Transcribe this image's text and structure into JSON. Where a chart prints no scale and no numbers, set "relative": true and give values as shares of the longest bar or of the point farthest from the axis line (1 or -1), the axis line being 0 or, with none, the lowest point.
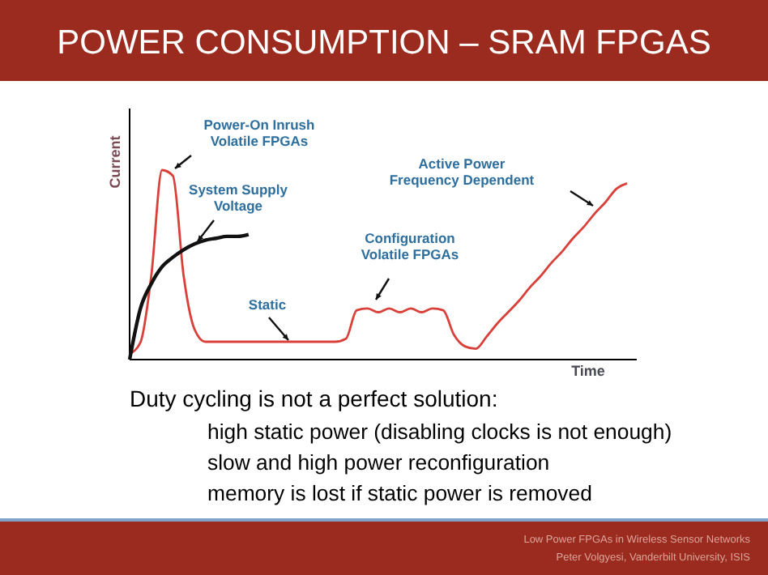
{
  "chart_data": {
    "type": "line",
    "title": "POWER CONSUMPTION – SRAM FPGAS",
    "xlabel": "Time",
    "ylabel": "Current",
    "relative": true,
    "marker": "none",
    "line_style": "solid",
    "categories": [
      null,
      null,
      null,
      null,
      null,
      null,
      null,
      null,
      null,
      null,
      null,
      null,
      null,
      null,
      null,
      null,
      null,
      null,
      null,
      null,
      null,
      null,
      null,
      null,
      null,
      null,
      null,
      null,
      null,
      null,
      null,
      null,
      null,
      null,
      null,
      null,
      null,
      null,
      null,
      null,
      null,
      null,
      null,
      null,
      null,
      null,
      null
    ],
    "series": [
      {
        "color": "#d9403a",
        "values": [
          0.03,
          0.09,
          0.44,
          1,
          0.97,
          0.44,
          0.16,
          0.094,
          0.094,
          0.094,
          0.094,
          0.094,
          0.094,
          0.094,
          0.094,
          0.094,
          0.094,
          0.094,
          0.094,
          0.094,
          0.11,
          0.26,
          0.27,
          0.25,
          0.27,
          0.25,
          0.27,
          0.25,
          0.27,
          0.26,
          0.13,
          0.07,
          0.057,
          0.12,
          0.19,
          0.25,
          0.31,
          0.38,
          0.44,
          0.51,
          0.57,
          0.64,
          0.7,
          0.77,
          0.83,
          0.9,
          0.93
        ]
      },
      {
        "color": "#111111",
        "values": [
          0,
          0.27,
          0.4,
          0.49,
          0.54,
          0.58,
          0.61,
          0.63,
          0.64,
          0.65,
          0.65,
          0.66,
          null,
          null,
          null,
          null,
          null,
          null,
          null,
          null,
          null,
          null,
          null,
          null,
          null,
          null,
          null,
          null,
          null,
          null,
          null,
          null,
          null,
          null,
          null,
          null,
          null,
          null,
          null,
          null,
          null,
          null,
          null,
          null,
          null,
          null,
          null
        ]
      }
    ],
    "annotations": [
      "Power-On Inrush\nVolatile FPGAs",
      "System Supply\nVoltage",
      "Static",
      "Configuration\nVolatile FPGAs",
      "Active Power\nFrequency Dependent",
      "Duty cycling is not a perfect solution:",
      "high static power (disabling clocks is not enough)",
      "slow and high power reconfiguration",
      "memory is lost if static power is removed",
      "Low Power FPGAs in Wireless Sensor Networks",
      "Peter Volgyesi, Vanderbilt University, ISIS"
    ]
  }
}
